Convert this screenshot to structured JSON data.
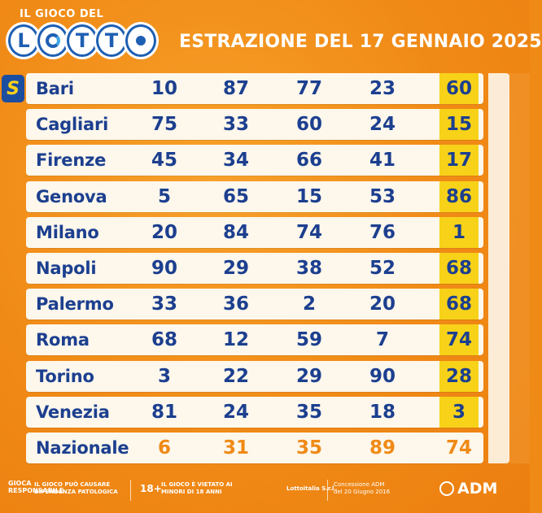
{
  "header": {
    "logo_top": "IL GIOCO DEL",
    "logo_letters": [
      "L",
      "O",
      "T",
      "T",
      "O"
    ],
    "title": "ESTRAZIONE DEL 17 GENNAIO 2025",
    "badge": "S"
  },
  "rows": [
    {
      "city": "Bari",
      "nums": [
        "10",
        "87",
        "77",
        "23",
        "60"
      ]
    },
    {
      "city": "Cagliari",
      "nums": [
        "75",
        "33",
        "60",
        "24",
        "15"
      ]
    },
    {
      "city": "Firenze",
      "nums": [
        "45",
        "34",
        "66",
        "41",
        "17"
      ]
    },
    {
      "city": "Genova",
      "nums": [
        "5",
        "65",
        "15",
        "53",
        "86"
      ]
    },
    {
      "city": "Milano",
      "nums": [
        "20",
        "84",
        "74",
        "76",
        "1"
      ]
    },
    {
      "city": "Napoli",
      "nums": [
        "90",
        "29",
        "38",
        "52",
        "68"
      ]
    },
    {
      "city": "Palermo",
      "nums": [
        "33",
        "36",
        "2",
        "20",
        "68"
      ]
    },
    {
      "city": "Roma",
      "nums": [
        "68",
        "12",
        "59",
        "7",
        "74"
      ]
    },
    {
      "city": "Torino",
      "nums": [
        "3",
        "22",
        "29",
        "90",
        "28"
      ]
    },
    {
      "city": "Venezia",
      "nums": [
        "81",
        "24",
        "35",
        "18",
        "3"
      ]
    },
    {
      "city": "Nazionale",
      "nums": [
        "6",
        "31",
        "35",
        "89",
        "74"
      ]
    }
  ],
  "footer": {
    "logo_text": "GIOCA RESPONSABILE",
    "warning1": "IL GIOCO PUÒ CAUSARE DIPENDENZA PATOLOGICA",
    "age": "18+",
    "warning2": "IL GIOCO È VIETATO AI MINORI DI 18 ANNI",
    "operator": "Lottoitalia S.r.l.",
    "concession": "Concessione ADM del 20 Giugno 2016",
    "adm": "ADM"
  },
  "colors": {
    "background": "#f08a16",
    "row_bg": "#fdf7ec",
    "text_blue": "#1c3f8f",
    "highlight_yellow": "#f7d219",
    "nazionale_orange": "#ef8a16"
  }
}
